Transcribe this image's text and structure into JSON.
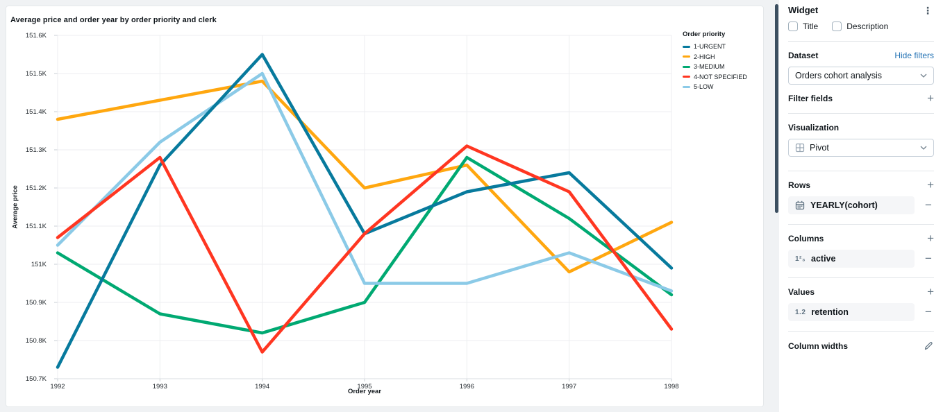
{
  "chart_data": {
    "type": "line",
    "title": "Average price and order year by order priority and clerk",
    "xlabel": "Order year",
    "ylabel": "Average price",
    "legend_title": "Order priority",
    "legend_position": "right",
    "grid": true,
    "x": [
      1992,
      1993,
      1994,
      1995,
      1996,
      1997,
      1998
    ],
    "xtick_labels": [
      "1992",
      "1993",
      "1994",
      "1995",
      "1996",
      "1997",
      "1998"
    ],
    "ylim": [
      150.7,
      151.6
    ],
    "yticks": [
      150.7,
      150.8,
      150.9,
      151.0,
      151.1,
      151.2,
      151.3,
      151.4,
      151.5,
      151.6
    ],
    "ytick_labels": [
      "150.7K",
      "150.8K",
      "150.9K",
      "151K",
      "151.1K",
      "151.2K",
      "151.3K",
      "151.4K",
      "151.5K",
      "151.6K"
    ],
    "unit": "K",
    "series": [
      {
        "name": "1-URGENT",
        "color": "#077A9D",
        "values": [
          150.73,
          151.26,
          151.55,
          151.08,
          151.19,
          151.24,
          150.99
        ]
      },
      {
        "name": "2-HIGH",
        "color": "#FFA70F",
        "values": [
          151.38,
          151.43,
          151.48,
          151.2,
          151.26,
          150.98,
          151.11
        ]
      },
      {
        "name": "3-MEDIUM",
        "color": "#00A972",
        "values": [
          151.03,
          150.87,
          150.82,
          150.9,
          151.28,
          151.12,
          150.92
        ]
      },
      {
        "name": "4-NOT SPECIFIED",
        "color": "#FF3621",
        "values": [
          151.07,
          151.28,
          150.77,
          151.08,
          151.31,
          151.19,
          150.83
        ]
      },
      {
        "name": "5-LOW",
        "color": "#8BCAE7",
        "values": [
          151.05,
          151.32,
          151.5,
          150.95,
          150.95,
          151.03,
          150.93
        ]
      }
    ]
  },
  "panel": {
    "title": "Widget",
    "checkbox_title": "Title",
    "checkbox_description": "Description",
    "dataset_label": "Dataset",
    "hide_filters": "Hide filters",
    "dataset_value": "Orders cohort analysis",
    "filter_fields_label": "Filter fields",
    "visualization_label": "Visualization",
    "visualization_value": "Pivot",
    "rows_label": "Rows",
    "rows_field": "YEARLY(cohort)",
    "columns_label": "Columns",
    "columns_field": "active",
    "values_label": "Values",
    "values_field": "retention",
    "column_widths_label": "Column widths"
  },
  "icons": {
    "kebab": "⋮",
    "plus": "+",
    "minus": "−",
    "number_field": "1²₃",
    "decimal_field": "1.2"
  }
}
